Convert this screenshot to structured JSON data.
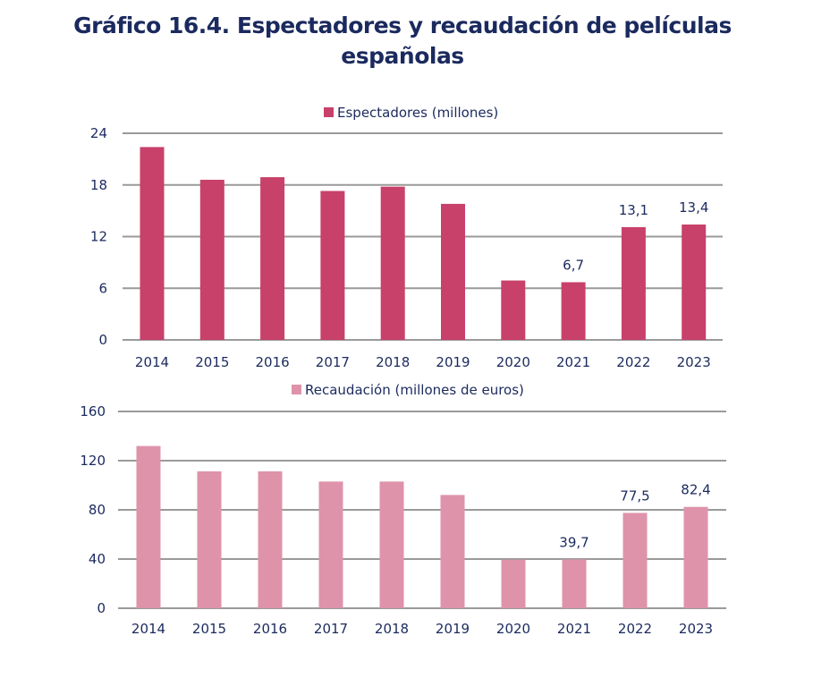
{
  "title_line1": "Gráfico 16.4. Espectadores y recaudación de películas",
  "title_line2": "españolas",
  "chart_data": [
    {
      "type": "bar",
      "title": "",
      "legend": "top-center",
      "series": [
        {
          "name": "Espectadores (millones)",
          "color": "#c8416a",
          "values": [
            22.4,
            18.6,
            18.9,
            17.3,
            17.8,
            15.8,
            6.9,
            6.7,
            13.1,
            13.4
          ]
        }
      ],
      "categories": [
        "2014",
        "2015",
        "2016",
        "2017",
        "2018",
        "2019",
        "2020",
        "2021",
        "2022",
        "2023"
      ],
      "data_labels": {
        "2021": "6,7",
        "2022": "13,1",
        "2023": "13,4"
      },
      "yticks": [
        "0",
        "6",
        "12",
        "18",
        "24"
      ],
      "ylim": [
        0,
        24
      ],
      "xlabel": "",
      "ylabel": "",
      "grid": true
    },
    {
      "type": "bar",
      "title": "",
      "legend": "top-center",
      "series": [
        {
          "name": "Recaudación (millones de euros)",
          "color": "#de93ab",
          "values": [
            131.9,
            111.3,
            111.3,
            103.0,
            103.0,
            92.1,
            39.5,
            39.7,
            77.5,
            82.4
          ]
        }
      ],
      "categories": [
        "2014",
        "2015",
        "2016",
        "2017",
        "2018",
        "2019",
        "2020",
        "2021",
        "2022",
        "2023"
      ],
      "data_labels": {
        "2021": "39,7",
        "2022": "77,5",
        "2023": "82,4"
      },
      "yticks": [
        "0",
        "40",
        "80",
        "120",
        "160"
      ],
      "ylim": [
        0,
        160
      ],
      "xlabel": "",
      "ylabel": "",
      "grid": true
    }
  ]
}
